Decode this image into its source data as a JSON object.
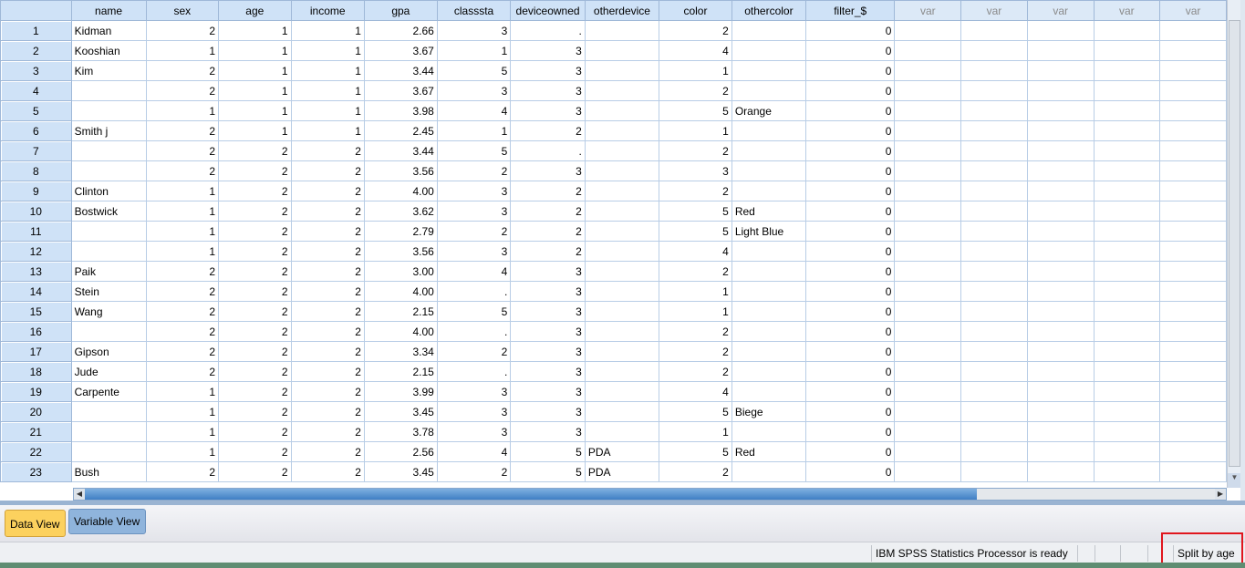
{
  "columns": [
    "name",
    "sex",
    "age",
    "income",
    "gpa",
    "classsta",
    "deviceowned",
    "otherdevice",
    "color",
    "othercolor",
    "filter_$",
    "var",
    "var",
    "var",
    "var",
    "var"
  ],
  "rows": [
    [
      "1",
      "Kidman",
      "2",
      "1",
      "1",
      "2.66",
      "3",
      ".",
      "",
      "2",
      "",
      "0"
    ],
    [
      "2",
      "Kooshian",
      "1",
      "1",
      "1",
      "3.67",
      "1",
      "3",
      "",
      "4",
      "",
      "0"
    ],
    [
      "3",
      "Kim",
      "2",
      "1",
      "1",
      "3.44",
      "5",
      "3",
      "",
      "1",
      "",
      "0"
    ],
    [
      "4",
      "",
      "2",
      "1",
      "1",
      "3.67",
      "3",
      "3",
      "",
      "2",
      "",
      "0"
    ],
    [
      "5",
      "",
      "1",
      "1",
      "1",
      "3.98",
      "4",
      "3",
      "",
      "5",
      "Orange",
      "0"
    ],
    [
      "6",
      "Smith j",
      "2",
      "1",
      "1",
      "2.45",
      "1",
      "2",
      "",
      "1",
      "",
      "0"
    ],
    [
      "7",
      "",
      "2",
      "2",
      "2",
      "3.44",
      "5",
      ".",
      "",
      "2",
      "",
      "0"
    ],
    [
      "8",
      "",
      "2",
      "2",
      "2",
      "3.56",
      "2",
      "3",
      "",
      "3",
      "",
      "0"
    ],
    [
      "9",
      "Clinton",
      "1",
      "2",
      "2",
      "4.00",
      "3",
      "2",
      "",
      "2",
      "",
      "0"
    ],
    [
      "10",
      "Bostwick",
      "1",
      "2",
      "2",
      "3.62",
      "3",
      "2",
      "",
      "5",
      "Red",
      "0"
    ],
    [
      "11",
      "",
      "1",
      "2",
      "2",
      "2.79",
      "2",
      "2",
      "",
      "5",
      "Light Blue",
      "0"
    ],
    [
      "12",
      "",
      "1",
      "2",
      "2",
      "3.56",
      "3",
      "2",
      "",
      "4",
      "",
      "0"
    ],
    [
      "13",
      "Paik",
      "2",
      "2",
      "2",
      "3.00",
      "4",
      "3",
      "",
      "2",
      "",
      "0"
    ],
    [
      "14",
      "Stein",
      "2",
      "2",
      "2",
      "4.00",
      ".",
      "3",
      "",
      "1",
      "",
      "0"
    ],
    [
      "15",
      "Wang",
      "2",
      "2",
      "2",
      "2.15",
      "5",
      "3",
      "",
      "1",
      "",
      "0"
    ],
    [
      "16",
      "",
      "2",
      "2",
      "2",
      "4.00",
      ".",
      "3",
      "",
      "2",
      "",
      "0"
    ],
    [
      "17",
      "Gipson",
      "2",
      "2",
      "2",
      "3.34",
      "2",
      "3",
      "",
      "2",
      "",
      "0"
    ],
    [
      "18",
      "Jude",
      "2",
      "2",
      "2",
      "2.15",
      ".",
      "3",
      "",
      "2",
      "",
      "0"
    ],
    [
      "19",
      "Carpente",
      "1",
      "2",
      "2",
      "3.99",
      "3",
      "3",
      "",
      "4",
      "",
      "0"
    ],
    [
      "20",
      "",
      "1",
      "2",
      "2",
      "3.45",
      "3",
      "3",
      "",
      "5",
      "Biege",
      "0"
    ],
    [
      "21",
      "",
      "1",
      "2",
      "2",
      "3.78",
      "3",
      "3",
      "",
      "1",
      "",
      "0"
    ],
    [
      "22",
      "",
      "1",
      "2",
      "2",
      "2.56",
      "4",
      "5",
      "PDA",
      "5",
      "Red",
      "0"
    ],
    [
      "23",
      "Bush",
      "2",
      "2",
      "2",
      "3.45",
      "2",
      "5",
      "PDA",
      "2",
      "",
      "0"
    ]
  ],
  "tabs": {
    "data_view": "Data View",
    "variable_view": "Variable View"
  },
  "status": {
    "processor": "IBM SPSS Statistics Processor is ready",
    "split": "Split by age"
  },
  "colors": {
    "header_bg": "#cfe2f7",
    "active_tab": "#fcd15e",
    "highlight_box": "#e0161e"
  }
}
